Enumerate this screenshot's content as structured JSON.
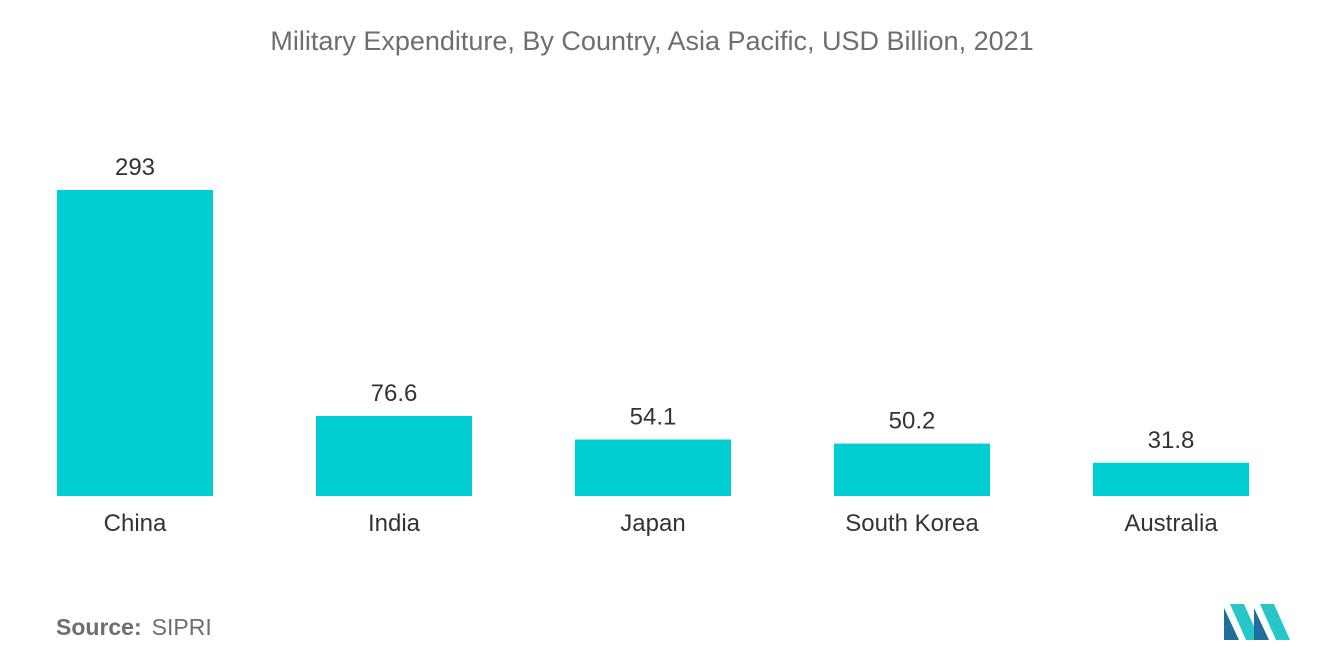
{
  "chart_data": {
    "type": "bar",
    "title": "Military Expenditure, By Country, Asia Pacific, USD Billion, 2021",
    "categories": [
      "China",
      "India",
      "Japan",
      "South Korea",
      "Australia"
    ],
    "values": [
      293,
      76.6,
      54.1,
      50.2,
      31.8
    ],
    "value_labels": [
      "293",
      "76.6",
      "54.1",
      "50.2",
      "31.8"
    ],
    "xlabel": "",
    "ylabel": "",
    "ylim": [
      0,
      293
    ],
    "grid": false,
    "legend": "none",
    "bar_color": "#00ced1"
  },
  "footer": {
    "source_label": "Source:",
    "source_value": "SIPRI"
  },
  "logo": {
    "icon": "mordor-intelligence-logo-icon",
    "colors": [
      "#1f6f9a",
      "#27c7c9"
    ]
  }
}
